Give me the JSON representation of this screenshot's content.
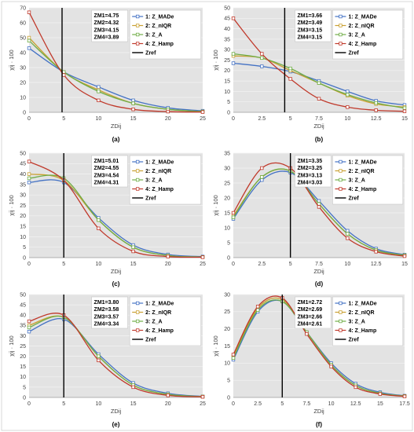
{
  "figure_colors": {
    "plot_bg": "#e3e3e3",
    "grid": "#f3f3f3",
    "ref_line": "#000000"
  },
  "chart_data": [
    {
      "type": "line",
      "caption": "(a)",
      "xlabel": "ZDij",
      "ylabel": "χij · 100",
      "xticks": [
        "0",
        "5",
        "10",
        "15",
        "20",
        "25"
      ],
      "xlim": [
        0,
        25
      ],
      "ylim": [
        0,
        70
      ],
      "yticks": [
        0,
        10,
        20,
        30,
        40,
        50,
        60,
        70
      ],
      "zref": 4.75,
      "annotations": [
        "ZM1=4.75",
        "ZM2=4.32",
        "ZM3=4.15",
        "ZM4=3.89"
      ],
      "series": [
        {
          "name": "1: Z_MADe",
          "color": "#4472c4",
          "x": [
            0,
            5,
            10,
            15,
            20,
            25
          ],
          "y": [
            43,
            27,
            17,
            8,
            3,
            1
          ]
        },
        {
          "name": "2: Z_nIQR",
          "color": "#c9a032",
          "x": [
            0,
            5,
            10,
            15,
            20,
            25
          ],
          "y": [
            50,
            27,
            15,
            6,
            2,
            0.5
          ]
        },
        {
          "name": "3: Z_A",
          "color": "#70ad47",
          "x": [
            0,
            5,
            10,
            15,
            20,
            25
          ],
          "y": [
            48,
            27,
            14,
            6,
            2,
            0.5
          ]
        },
        {
          "name": "4: Z_Hamp",
          "color": "#c0392b",
          "x": [
            0,
            5,
            10,
            15,
            20,
            25
          ],
          "y": [
            67,
            25,
            8,
            2,
            0.5,
            0.2
          ]
        },
        {
          "name": "Zref",
          "color": "#000000",
          "ref": true
        }
      ]
    },
    {
      "type": "line",
      "caption": "(b)",
      "xlabel": "ZDij",
      "ylabel": "χij · 100",
      "xticks": [
        "0",
        "2.5",
        "5",
        "7.5",
        "10",
        "12.5",
        "15"
      ],
      "xlim": [
        0,
        15
      ],
      "ylim": [
        0,
        50
      ],
      "yticks": [
        0,
        5,
        10,
        15,
        20,
        25,
        30,
        35,
        40,
        45,
        50
      ],
      "zref": 4.5,
      "annotations": [
        "ZM1=3.66",
        "ZM2=3.49",
        "ZM3=3.15",
        "ZM4=3.15"
      ],
      "series": [
        {
          "name": "1: Z_MADe",
          "color": "#4472c4",
          "x": [
            0,
            2.5,
            5,
            7.5,
            10,
            12.5,
            15
          ],
          "y": [
            23.5,
            22,
            19.5,
            15,
            10,
            5.5,
            3.5
          ]
        },
        {
          "name": "2: Z_nIQR",
          "color": "#c9a032",
          "x": [
            0,
            2.5,
            5,
            7.5,
            10,
            12.5,
            15
          ],
          "y": [
            27,
            26,
            20,
            14,
            8,
            4,
            2.5
          ]
        },
        {
          "name": "3: Z_A",
          "color": "#70ad47",
          "x": [
            0,
            2.5,
            5,
            7.5,
            10,
            12.5,
            15
          ],
          "y": [
            28,
            26,
            21,
            14,
            8.5,
            4.5,
            2
          ]
        },
        {
          "name": "4: Z_Hamp",
          "color": "#c0392b",
          "x": [
            0,
            2.5,
            5,
            7.5,
            10,
            12.5,
            15
          ],
          "y": [
            45,
            28,
            16,
            6.5,
            2.5,
            1,
            0.5
          ]
        },
        {
          "name": "Zref",
          "color": "#000000",
          "ref": true
        }
      ]
    },
    {
      "type": "line",
      "caption": "(c)",
      "xlabel": "ZDij",
      "ylabel": "χij · 100",
      "xticks": [
        "0",
        "5",
        "10",
        "15",
        "20",
        "25"
      ],
      "xlim": [
        0,
        25
      ],
      "ylim": [
        0,
        50
      ],
      "yticks": [
        0,
        5,
        10,
        15,
        20,
        25,
        30,
        35,
        40,
        45,
        50
      ],
      "zref": 5,
      "annotations": [
        "ZM1=5.01",
        "ZM2=4.55",
        "ZM3=4.54",
        "ZM4=4.31"
      ],
      "series": [
        {
          "name": "1: Z_MADe",
          "color": "#4472c4",
          "x": [
            0,
            5,
            10,
            15,
            20,
            25
          ],
          "y": [
            36,
            36,
            19,
            6,
            1.5,
            0.5
          ]
        },
        {
          "name": "2: Z_nIQR",
          "color": "#c9a032",
          "x": [
            0,
            5,
            10,
            15,
            20,
            25
          ],
          "y": [
            40,
            37,
            18,
            5,
            1,
            0.3
          ]
        },
        {
          "name": "3: Z_A",
          "color": "#70ad47",
          "x": [
            0,
            5,
            10,
            15,
            20,
            25
          ],
          "y": [
            38,
            38,
            18,
            5,
            1,
            0.3
          ]
        },
        {
          "name": "4: Z_Hamp",
          "color": "#c0392b",
          "x": [
            0,
            5,
            10,
            15,
            20,
            25
          ],
          "y": [
            46,
            37,
            14,
            3,
            0.5,
            0.2
          ]
        },
        {
          "name": "Zref",
          "color": "#000000",
          "ref": true
        }
      ]
    },
    {
      "type": "line",
      "caption": "(d)",
      "xlabel": "ZDij",
      "ylabel": "χij · 100",
      "xticks": [
        "0",
        "2.5",
        "5",
        "7.5",
        "10",
        "12.5",
        "15"
      ],
      "xlim": [
        0,
        15
      ],
      "ylim": [
        0,
        35
      ],
      "yticks": [
        0,
        5,
        10,
        15,
        20,
        25,
        30,
        35
      ],
      "zref": 5,
      "annotations": [
        "ZM1=3.35",
        "ZM2=3.25",
        "ZM3=3.13",
        "ZM4=3.03"
      ],
      "series": [
        {
          "name": "1: Z_MADe",
          "color": "#4472c4",
          "x": [
            0,
            2.5,
            5,
            7.5,
            10,
            12.5,
            15
          ],
          "y": [
            13,
            26,
            28.5,
            19,
            9,
            3,
            1
          ]
        },
        {
          "name": "2: Z_nIQR",
          "color": "#c9a032",
          "x": [
            0,
            2.5,
            5,
            7.5,
            10,
            12.5,
            15
          ],
          "y": [
            14,
            27,
            29,
            18,
            8,
            2.5,
            0.8
          ]
        },
        {
          "name": "3: Z_A",
          "color": "#70ad47",
          "x": [
            0,
            2.5,
            5,
            7.5,
            10,
            12.5,
            15
          ],
          "y": [
            13.5,
            27,
            29,
            18,
            8,
            2.5,
            0.8
          ]
        },
        {
          "name": "4: Z_Hamp",
          "color": "#c0392b",
          "x": [
            0,
            2.5,
            5,
            7.5,
            10,
            12.5,
            15
          ],
          "y": [
            15,
            30,
            30,
            17,
            6.5,
            2,
            0.5
          ]
        },
        {
          "name": "Zref",
          "color": "#000000",
          "ref": true
        }
      ]
    },
    {
      "type": "line",
      "caption": "(e)",
      "xlabel": "ZDij",
      "ylabel": "χij · 100",
      "xticks": [
        "0",
        "5",
        "10",
        "15",
        "20",
        "25"
      ],
      "xlim": [
        0,
        25
      ],
      "ylim": [
        0,
        50
      ],
      "yticks": [
        0,
        5,
        10,
        15,
        20,
        25,
        30,
        35,
        40,
        45,
        50
      ],
      "zref": 5,
      "annotations": [
        "ZM1=3.80",
        "ZM2=3.58",
        "ZM3=3.57",
        "ZM4=3.34"
      ],
      "series": [
        {
          "name": "1: Z_MADe",
          "color": "#4472c4",
          "x": [
            0,
            5,
            10,
            15,
            20,
            25
          ],
          "y": [
            32,
            38,
            21,
            7,
            2,
            0.5
          ]
        },
        {
          "name": "2: Z_nIQR",
          "color": "#c9a032",
          "x": [
            0,
            5,
            10,
            15,
            20,
            25
          ],
          "y": [
            35,
            39,
            20,
            6,
            1.5,
            0.4
          ]
        },
        {
          "name": "3: Z_A",
          "color": "#70ad47",
          "x": [
            0,
            5,
            10,
            15,
            20,
            25
          ],
          "y": [
            34,
            39,
            20,
            6,
            1.5,
            0.4
          ]
        },
        {
          "name": "4: Z_Hamp",
          "color": "#c0392b",
          "x": [
            0,
            5,
            10,
            15,
            20,
            25
          ],
          "y": [
            37,
            40,
            18,
            5,
            1,
            0.3
          ]
        },
        {
          "name": "Zref",
          "color": "#000000",
          "ref": true
        }
      ]
    },
    {
      "type": "line",
      "caption": "(f)",
      "xlabel": "ZDij",
      "ylabel": "χij · 100",
      "xticks": [
        "0",
        "2.5",
        "5",
        "7.5",
        "10",
        "12.5",
        "15",
        "17.5"
      ],
      "xlim": [
        0,
        17.5
      ],
      "ylim": [
        0,
        30
      ],
      "yticks": [
        0,
        5,
        10,
        15,
        20,
        25,
        30
      ],
      "zref": 5,
      "annotations": [
        "ZM1=2.72",
        "ZM2=2.69",
        "ZM3=2.66",
        "ZM4=2.61"
      ],
      "series": [
        {
          "name": "1: Z_MADe",
          "color": "#4472c4",
          "x": [
            0,
            2.5,
            5,
            7.5,
            10,
            12.5,
            15,
            17.5
          ],
          "y": [
            11,
            25,
            28,
            19,
            10,
            4,
            1.5,
            0.5
          ]
        },
        {
          "name": "2: Z_nIQR",
          "color": "#c9a032",
          "x": [
            0,
            2.5,
            5,
            7.5,
            10,
            12.5,
            15,
            17.5
          ],
          "y": [
            12,
            26,
            28.5,
            19,
            9.5,
            3.5,
            1.2,
            0.4
          ]
        },
        {
          "name": "3: Z_A",
          "color": "#70ad47",
          "x": [
            0,
            2.5,
            5,
            7.5,
            10,
            12.5,
            15,
            17.5
          ],
          "y": [
            11.5,
            25.5,
            28,
            19,
            9.5,
            3.5,
            1.2,
            0.4
          ]
        },
        {
          "name": "4: Z_Hamp",
          "color": "#c0392b",
          "x": [
            0,
            2.5,
            5,
            7.5,
            10,
            12.5,
            15,
            17.5
          ],
          "y": [
            12.5,
            26.5,
            29,
            18.5,
            9,
            3,
            1,
            0.3
          ]
        },
        {
          "name": "Zref",
          "color": "#000000",
          "ref": true
        }
      ]
    }
  ]
}
